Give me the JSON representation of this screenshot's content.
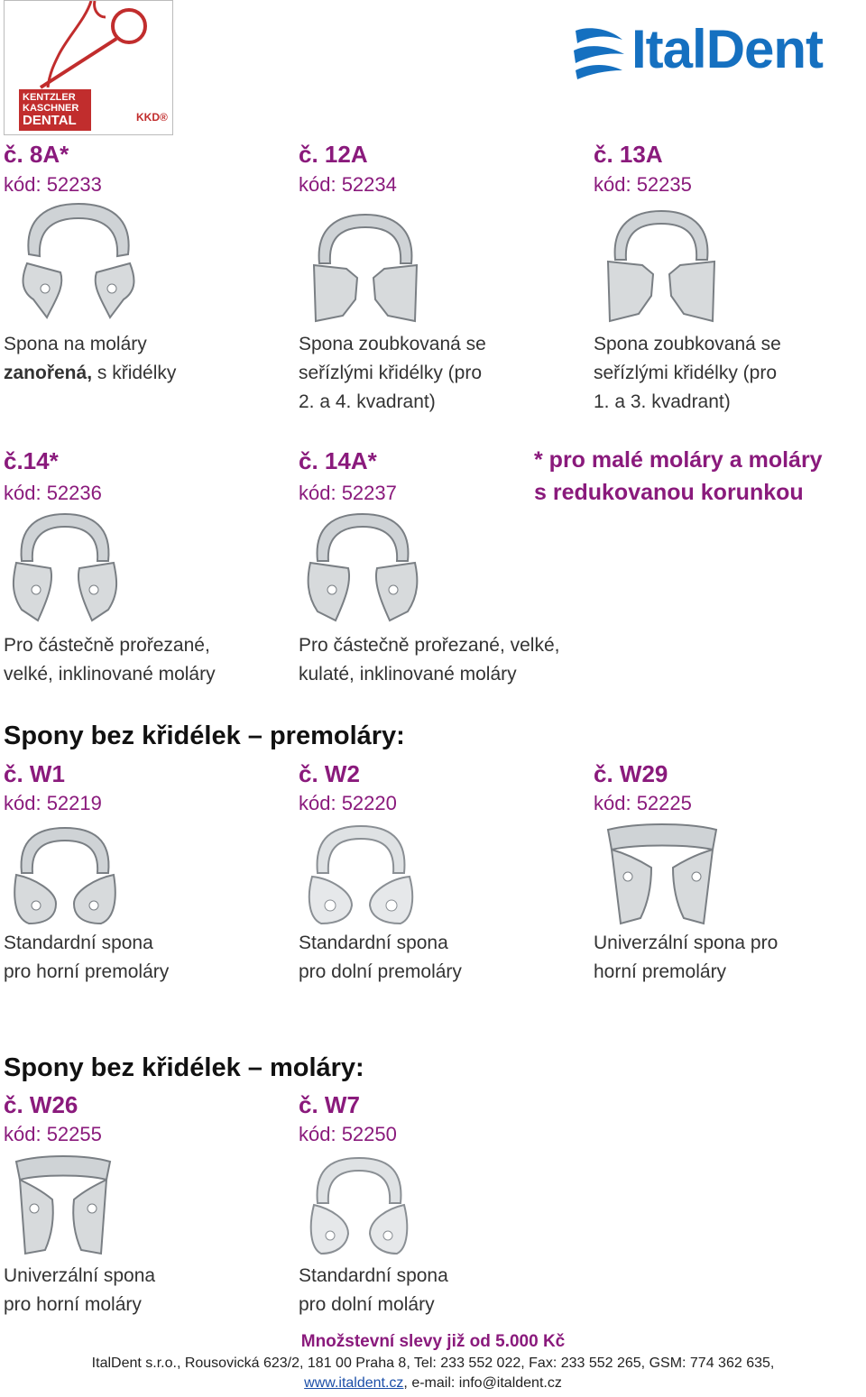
{
  "brand_left": {
    "lines": [
      "KENTZLER",
      "KASCHNER",
      "DENTAL"
    ],
    "badge": "KKD®"
  },
  "brand_right": {
    "name": "ItalDent"
  },
  "row1": [
    {
      "title": "č. 8A*",
      "code": "kód: 52233",
      "desc_bold": "zanořená,",
      "desc_line1": "Spona na moláry",
      "desc_line2_rest": " s křidélky"
    },
    {
      "title": "č. 12A",
      "code": "kód: 52234",
      "desc_lines": [
        "Spona zoubkovaná se",
        "seřízlými křidélky (pro",
        "2. a 4. kvadrant)"
      ]
    },
    {
      "title": "č. 13A",
      "code": "kód: 52235",
      "desc_lines": [
        "Spona zoubkovaná se",
        "seřízlými křidélky (pro",
        "1. a 3. kvadrant)"
      ]
    }
  ],
  "row2": [
    {
      "title": "č.14*",
      "code": "kód: 52236",
      "desc_lines": [
        "Pro částečně prořezané,",
        "velké, inklinované moláry"
      ]
    },
    {
      "title": "č. 14A*",
      "code": "kód: 52237",
      "desc_lines": [
        "Pro částečně prořezané, velké,",
        "kulaté, inklinované moláry"
      ]
    }
  ],
  "note": {
    "line1": "* pro malé moláry a moláry",
    "line2": "s redukovanou korunkou"
  },
  "section_premolars": "Spony bez křidélek – premoláry:",
  "row3": [
    {
      "title": "č. W1",
      "code": "kód: 52219",
      "desc_lines": [
        "Standardní spona",
        "pro horní premoláry"
      ]
    },
    {
      "title": "č. W2",
      "code": "kód: 52220",
      "desc_lines": [
        "Standardní spona",
        "pro dolní premoláry"
      ]
    },
    {
      "title": "č. W29",
      "code": "kód: 52225",
      "desc_lines": [
        "Univerzální spona pro",
        "horní premoláry"
      ]
    }
  ],
  "section_molars": "Spony bez křidélek – moláry:",
  "row4": [
    {
      "title": "č. W26",
      "code": "kód: 52255",
      "desc_lines": [
        "Univerzální spona",
        "pro horní moláry"
      ]
    },
    {
      "title": "č. W7",
      "code": "kód: 52250",
      "desc_lines": [
        "Standardní spona",
        "pro dolní moláry"
      ]
    }
  ],
  "footer": {
    "promo": "Množstevní slevy již od 5.000 Kč",
    "address": "ItalDent s.r.o., Rousovická 623/2, 181 00 Praha 8, Tel: 233 552 022, Fax: 233 552 265, GSM: 774 362 635,",
    "web": "www.italdent.cz",
    "email": ", e-mail: info@italdent.cz"
  },
  "colors": {
    "accent": "#8a1a7c",
    "brand_blue": "#1570c0",
    "kkd_red": "#c0392b"
  }
}
